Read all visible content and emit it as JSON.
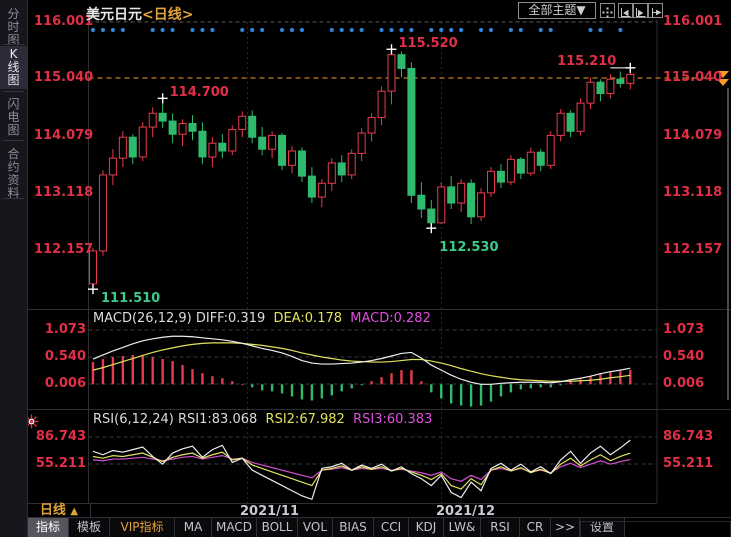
{
  "window": {
    "title": "美元日元",
    "title_suffix": "<日线>"
  },
  "colors": {
    "up_red": "#e83b4e",
    "down_green": "#30ba6e",
    "axis_red": "#e22f48",
    "green_text": "#3bcb8a",
    "orange": "#f59a23",
    "dot_blue": "#2f86d6",
    "line_white": "#ededed",
    "line_yellow": "#e2e25e",
    "line_magenta": "#d24fd2",
    "grid": "#3a3a42",
    "divider": "#2e2e36"
  },
  "sidebar": {
    "items": [
      {
        "label": "分时图",
        "active": false
      },
      {
        "label": "K线图",
        "active": true
      },
      {
        "label": "闪电图",
        "active": false
      },
      {
        "label": "合约资料",
        "active": false
      }
    ]
  },
  "header": {
    "theme_button": "全部主题▼",
    "icons": [
      "crosshair-icon",
      "compress-xaxis-icon",
      "expand-xaxis-icon",
      "pan-right-icon"
    ]
  },
  "main_axis": {
    "ticks": [
      "116.001",
      "115.040",
      "114.079",
      "113.118",
      "112.157"
    ]
  },
  "macd_panel": {
    "title": "MACD(26,12,9) DIFF:0.319",
    "dea_label": "DEA:0.178",
    "macd_label": "MACD:0.282",
    "ticks": [
      "1.073",
      "0.540",
      "0.006"
    ]
  },
  "rsi_panel": {
    "title": "RSI(6,12,24) RSI1:83.068",
    "rsi2_label": "RSI2:67.982",
    "rsi3_label": "RSI3:60.383",
    "ticks": [
      "86.743",
      "55.211"
    ]
  },
  "xaxis": {
    "period_tab": "日线",
    "period_arrow": "▲",
    "dates": [
      "2021/11",
      "2021/12"
    ]
  },
  "toolbar": {
    "items": [
      {
        "label": "指标",
        "active": true
      },
      {
        "label": "模板"
      },
      {
        "label": "VIP指标",
        "vip": true
      },
      {
        "label": "MA"
      },
      {
        "label": "MACD"
      },
      {
        "label": "BOLL"
      },
      {
        "label": "VOL"
      },
      {
        "label": "BIAS"
      },
      {
        "label": "CCI"
      },
      {
        "label": "KDJ"
      },
      {
        "label": "LW&"
      },
      {
        "label": "RSI"
      },
      {
        "label": "CR"
      },
      {
        "label": ">>"
      },
      {
        "label": "设置"
      }
    ]
  },
  "chart_data": {
    "type": "candlestick",
    "symbol": "美元日元",
    "period": "日线",
    "main": {
      "ylim": [
        111.3,
        116.02
      ],
      "axis_ticks": [
        116.001,
        115.04,
        114.079,
        113.118,
        112.157
      ],
      "last_price_line": {
        "value": 115.04,
        "label": "115.040"
      },
      "candles_ohlc": [
        [
          111.6,
          112.2,
          111.51,
          112.15
        ],
        [
          112.15,
          113.5,
          112.07,
          113.42
        ],
        [
          113.42,
          113.85,
          113.25,
          113.7
        ],
        [
          113.7,
          114.15,
          113.55,
          114.05
        ],
        [
          114.05,
          114.1,
          113.6,
          113.72
        ],
        [
          113.72,
          114.3,
          113.65,
          114.22
        ],
        [
          114.22,
          114.55,
          114.05,
          114.45
        ],
        [
          114.45,
          114.7,
          114.2,
          114.32
        ],
        [
          114.32,
          114.45,
          113.95,
          114.1
        ],
        [
          114.1,
          114.35,
          113.9,
          114.28
        ],
        [
          114.28,
          114.42,
          114.0,
          114.15
        ],
        [
          114.15,
          114.3,
          113.6,
          113.72
        ],
        [
          113.72,
          114.05,
          113.55,
          113.95
        ],
        [
          113.95,
          114.1,
          113.7,
          113.82
        ],
        [
          113.82,
          114.25,
          113.75,
          114.18
        ],
        [
          114.18,
          114.48,
          114.05,
          114.4
        ],
        [
          114.4,
          114.5,
          113.95,
          114.05
        ],
        [
          114.05,
          114.22,
          113.75,
          113.85
        ],
        [
          113.85,
          114.15,
          113.7,
          114.08
        ],
        [
          114.08,
          114.12,
          113.5,
          113.58
        ],
        [
          113.58,
          113.9,
          113.45,
          113.82
        ],
        [
          113.82,
          113.88,
          113.3,
          113.4
        ],
        [
          113.4,
          113.55,
          112.95,
          113.05
        ],
        [
          113.05,
          113.35,
          112.88,
          113.28
        ],
        [
          113.28,
          113.7,
          113.15,
          113.62
        ],
        [
          113.62,
          113.75,
          113.3,
          113.42
        ],
        [
          113.42,
          113.85,
          113.35,
          113.78
        ],
        [
          113.78,
          114.2,
          113.65,
          114.12
        ],
        [
          114.12,
          114.45,
          113.98,
          114.38
        ],
        [
          114.38,
          114.9,
          114.25,
          114.82
        ],
        [
          114.82,
          115.52,
          114.6,
          115.43
        ],
        [
          115.43,
          115.48,
          115.05,
          115.2
        ],
        [
          115.2,
          115.3,
          112.95,
          113.08
        ],
        [
          113.08,
          113.3,
          112.7,
          112.85
        ],
        [
          112.85,
          113.0,
          112.53,
          112.62
        ],
        [
          112.62,
          113.3,
          112.6,
          113.22
        ],
        [
          113.22,
          113.4,
          112.85,
          112.95
        ],
        [
          112.95,
          113.35,
          112.8,
          113.28
        ],
        [
          113.28,
          113.35,
          112.6,
          112.72
        ],
        [
          112.72,
          113.2,
          112.65,
          113.12
        ],
        [
          113.12,
          113.55,
          113.05,
          113.48
        ],
        [
          113.48,
          113.6,
          113.2,
          113.3
        ],
        [
          113.3,
          113.75,
          113.25,
          113.68
        ],
        [
          113.68,
          113.72,
          113.35,
          113.45
        ],
        [
          113.45,
          113.88,
          113.4,
          113.8
        ],
        [
          113.8,
          113.85,
          113.48,
          113.58
        ],
        [
          113.58,
          114.15,
          113.52,
          114.08
        ],
        [
          114.08,
          114.52,
          113.98,
          114.45
        ],
        [
          114.45,
          114.5,
          114.05,
          114.15
        ],
        [
          114.15,
          114.7,
          114.08,
          114.62
        ],
        [
          114.62,
          115.05,
          114.52,
          114.97
        ],
        [
          114.97,
          115.02,
          114.65,
          114.78
        ],
        [
          114.78,
          115.1,
          114.7,
          115.02
        ],
        [
          115.02,
          115.15,
          114.88,
          114.95
        ],
        [
          114.95,
          115.21,
          114.85,
          115.1
        ]
      ],
      "signal_dots_idx": [
        0,
        1,
        2,
        3,
        6,
        7,
        8,
        10,
        11,
        12,
        15,
        16,
        17,
        19,
        20,
        21,
        24,
        25,
        26,
        27,
        29,
        30,
        31,
        32,
        34,
        35,
        36,
        37,
        39,
        40,
        42,
        43,
        45,
        46,
        50,
        51,
        53
      ],
      "annotations": [
        {
          "idx": 0,
          "price": 111.51,
          "label": "111.510",
          "side": "low"
        },
        {
          "idx": 7,
          "price": 114.7,
          "label": "114.700",
          "side": "high"
        },
        {
          "idx": 30,
          "price": 115.52,
          "label": "115.520",
          "side": "high"
        },
        {
          "idx": 34,
          "price": 112.53,
          "label": "112.530",
          "side": "low",
          "dy": 10
        },
        {
          "idx": 54,
          "price": 115.21,
          "label": "115.210",
          "side": "high",
          "anchor": "right",
          "level_dash": true
        }
      ]
    },
    "macd": {
      "params": "26,12,9",
      "diff_value": 0.319,
      "dea_value": 0.178,
      "macd_value": 0.282,
      "axis_ticks": [
        1.073,
        0.54,
        0.006
      ],
      "diff": [
        0.5,
        0.58,
        0.66,
        0.73,
        0.8,
        0.86,
        0.9,
        0.93,
        0.95,
        0.95,
        0.94,
        0.92,
        0.9,
        0.88,
        0.85,
        0.81,
        0.76,
        0.71,
        0.67,
        0.62,
        0.55,
        0.47,
        0.42,
        0.4,
        0.4,
        0.41,
        0.42,
        0.44,
        0.47,
        0.51,
        0.56,
        0.61,
        0.63,
        0.52,
        0.38,
        0.28,
        0.18,
        0.1,
        0.04,
        0.0,
        0.0,
        0.02,
        0.03,
        0.04,
        0.04,
        0.04,
        0.03,
        0.05,
        0.09,
        0.12,
        0.16,
        0.21,
        0.25,
        0.28,
        0.319
      ],
      "dea": [
        0.28,
        0.33,
        0.39,
        0.45,
        0.51,
        0.57,
        0.63,
        0.68,
        0.72,
        0.76,
        0.79,
        0.81,
        0.82,
        0.82,
        0.82,
        0.81,
        0.79,
        0.77,
        0.74,
        0.71,
        0.67,
        0.62,
        0.58,
        0.54,
        0.51,
        0.48,
        0.46,
        0.45,
        0.44,
        0.44,
        0.45,
        0.47,
        0.49,
        0.49,
        0.46,
        0.42,
        0.37,
        0.31,
        0.26,
        0.21,
        0.17,
        0.14,
        0.11,
        0.09,
        0.08,
        0.07,
        0.06,
        0.06,
        0.06,
        0.07,
        0.08,
        0.1,
        0.13,
        0.15,
        0.178
      ]
    },
    "rsi": {
      "params": "6,12,24",
      "rsi1_value": 83.068,
      "rsi2_value": 67.982,
      "rsi3_value": 60.383,
      "axis_ticks": [
        86.743,
        55.211
      ],
      "rsi1": [
        70,
        66,
        71,
        69,
        72,
        75,
        64,
        55,
        68,
        73,
        76,
        63,
        72,
        77,
        57,
        62,
        48,
        42,
        36,
        30,
        24,
        18,
        14,
        50,
        52,
        56,
        48,
        54,
        50,
        55,
        47,
        52,
        44,
        38,
        30,
        42,
        22,
        16,
        34,
        24,
        50,
        56,
        48,
        55,
        46,
        52,
        44,
        60,
        70,
        56,
        68,
        76,
        66,
        74,
        83.068
      ],
      "rsi2": [
        64,
        62,
        65,
        64,
        66,
        68,
        63,
        58,
        63,
        66,
        68,
        62,
        66,
        69,
        60,
        62,
        54,
        50,
        46,
        42,
        38,
        34,
        30,
        48,
        50,
        53,
        48,
        52,
        49,
        52,
        47,
        50,
        46,
        42,
        37,
        44,
        30,
        26,
        38,
        31,
        48,
        52,
        47,
        51,
        45,
        49,
        44,
        55,
        62,
        53,
        60,
        66,
        59,
        64,
        67.982
      ],
      "rsi3": [
        60,
        59,
        61,
        61,
        62,
        63,
        61,
        59,
        61,
        63,
        64,
        61,
        63,
        65,
        61,
        62,
        57,
        54,
        51,
        48,
        45,
        42,
        39,
        48,
        49,
        51,
        48,
        50,
        49,
        50,
        48,
        49,
        47,
        45,
        42,
        46,
        38,
        35,
        42,
        37,
        48,
        50,
        47,
        50,
        46,
        48,
        45,
        52,
        56,
        51,
        55,
        59,
        55,
        58,
        60.383
      ]
    },
    "x_dates": [
      "2021/11",
      "2021/12"
    ]
  }
}
